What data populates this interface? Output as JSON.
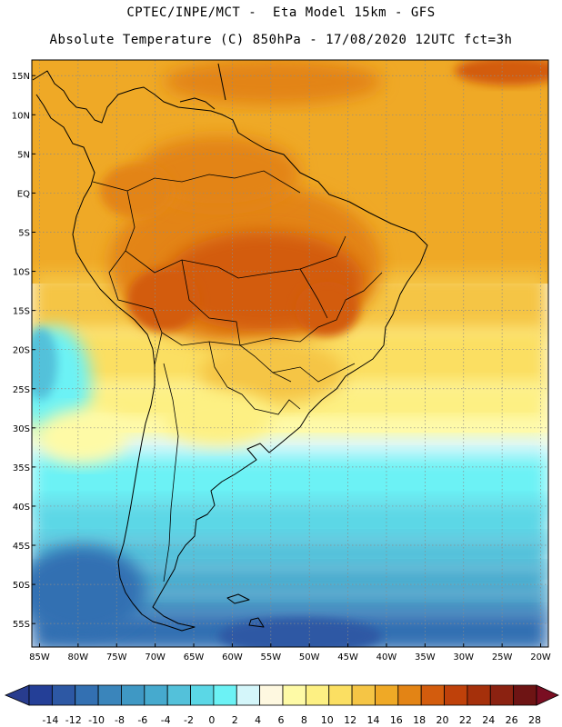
{
  "header": {
    "line1": "CPTEC/INPE/MCT -  Eta Model 15km - GFS",
    "line2": "Absolute Temperature (C) 850hPa - 17/08/2020 12UTC fct=3h"
  },
  "map": {
    "lat_labels": [
      "15N",
      "10N",
      "5N",
      "EQ",
      "5S",
      "10S",
      "15S",
      "20S",
      "25S",
      "30S",
      "35S",
      "40S",
      "45S",
      "50S",
      "55S"
    ],
    "lon_labels": [
      "85W",
      "80W",
      "75W",
      "70W",
      "65W",
      "60W",
      "55W",
      "50W",
      "45W",
      "40W",
      "35W",
      "30W",
      "25W",
      "20W"
    ],
    "lat_range": [
      17,
      -58
    ],
    "lon_range": [
      -86,
      -19
    ]
  },
  "colorbar": {
    "labels": [
      "-14",
      "-12",
      "-10",
      "-8",
      "-6",
      "-4",
      "-2",
      "0",
      "2",
      "4",
      "6",
      "8",
      "10",
      "12",
      "14",
      "16",
      "18",
      "20",
      "22",
      "24",
      "26",
      "28"
    ],
    "colors": [
      "#243f97",
      "#2d58a4",
      "#3370b2",
      "#3a85bb",
      "#3f98c4",
      "#46aace",
      "#53c1da",
      "#5bd7e6",
      "#6cf2f5",
      "#d4f6fa",
      "#fef8e0",
      "#fefaa6",
      "#fdf083",
      "#fbdf62",
      "#f5c545",
      "#efa926",
      "#e38415",
      "#d35c0d",
      "#bf410a",
      "#a5300b",
      "#8b2211",
      "#6e1414"
    ],
    "under_color": "#283c8e",
    "over_color": "#7a0e22"
  }
}
